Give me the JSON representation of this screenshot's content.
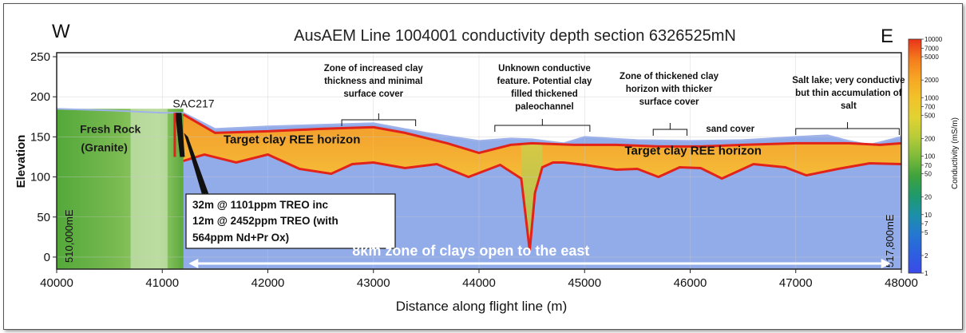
{
  "chart_data": {
    "type": "heatmap",
    "title": "AusAEM Line 1004001 conductivity depth section 6326525mN",
    "xlabel": "Distance along flight line (m)",
    "ylabel": "Elevation",
    "xlim": [
      40000,
      48000
    ],
    "ylim": [
      -15,
      255
    ],
    "x_ticks": [
      "40000",
      "41000",
      "42000",
      "43000",
      "44000",
      "45000",
      "46000",
      "47000",
      "48000"
    ],
    "x_tick_values": [
      40000,
      41000,
      42000,
      43000,
      44000,
      45000,
      46000,
      47000,
      48000
    ],
    "y_ticks": [
      "0",
      "50",
      "100",
      "150",
      "200",
      "250"
    ],
    "y_tick_values": [
      0,
      50,
      100,
      150,
      200,
      250
    ],
    "direction_left": "W",
    "direction_right": "E",
    "easting_left": "510,000mE",
    "easting_right": "517,800mE",
    "colorbar": {
      "label": "Conductivity (mS/m)",
      "scale": "log",
      "ticks": [
        "10000",
        "7000",
        "5000",
        "2000",
        "1000",
        "700",
        "500",
        "200",
        "100",
        "70",
        "50",
        "20",
        "10",
        "7",
        "5",
        "2",
        "1"
      ],
      "tick_values": [
        10000,
        7000,
        5000,
        2000,
        1000,
        700,
        500,
        200,
        100,
        70,
        50,
        20,
        10,
        7,
        5,
        2,
        1
      ],
      "colors": [
        "#e8331a",
        "#f57a1c",
        "#f6a524",
        "#f2c22a",
        "#e2d232",
        "#b8cc38",
        "#7fbb3a",
        "#3fa33c",
        "#1f9a6a",
        "#1c90a8",
        "#2478d0",
        "#2d5fe0",
        "#3a4ae8"
      ]
    },
    "drillhole": {
      "label": "SAC217",
      "x": 41160
    },
    "surface_profile": {
      "x": [
        40000,
        40500,
        41000,
        41200,
        41500,
        42000,
        42500,
        43000,
        43500,
        44000,
        44300,
        44500,
        44800,
        45000,
        45500,
        46000,
        46500,
        47000,
        47300,
        47500,
        47700,
        48000
      ],
      "y": [
        185,
        183,
        180,
        180,
        160,
        163,
        165,
        167,
        155,
        145,
        148,
        147,
        142,
        150,
        146,
        145,
        146,
        150,
        152,
        145,
        140,
        150
      ]
    },
    "clay_top": {
      "x": [
        41200,
        41500,
        42000,
        42500,
        43000,
        43300,
        43700,
        44000,
        44300,
        44500,
        44900,
        45300,
        45700,
        46100,
        46500,
        47000,
        47500,
        47800,
        48000
      ],
      "y": [
        178,
        155,
        157,
        160,
        162,
        155,
        142,
        130,
        140,
        142,
        140,
        140,
        138,
        138,
        140,
        142,
        142,
        140,
        142
      ]
    },
    "clay_base": {
      "x": [
        41200,
        41400,
        41700,
        42000,
        42300,
        42600,
        42800,
        43000,
        43300,
        43600,
        43900,
        44200,
        44400,
        44480,
        44530,
        44600,
        44700,
        44800,
        45000,
        45300,
        45500,
        45700,
        45900,
        46100,
        46300,
        46600,
        46900,
        47100,
        47400,
        47700,
        48000
      ],
      "y": [
        120,
        128,
        118,
        128,
        110,
        104,
        116,
        118,
        111,
        116,
        100,
        115,
        98,
        8,
        80,
        112,
        118,
        118,
        115,
        109,
        110,
        100,
        112,
        111,
        98,
        116,
        112,
        102,
        110,
        117,
        116
      ]
    },
    "annotations": [
      {
        "lines": [
          "Zone of increased clay",
          "thickness and minimal",
          "surface cover"
        ],
        "x": 43000
      },
      {
        "lines": [
          "Unknown conductive",
          "feature. Potential clay",
          "filled thickened",
          "paleochannel"
        ],
        "x": 44620
      },
      {
        "lines": [
          "Zone of thickened clay",
          "horizon with thicker",
          "surface cover"
        ],
        "x": 45800
      },
      {
        "lines": [
          "Salt lake; very conductive",
          "but thin accumulation of",
          "salt"
        ],
        "x": 47500
      },
      {
        "lines": [
          "sand cover"
        ],
        "x": 46380
      }
    ],
    "unit_labels": {
      "fresh_rock": [
        "Fresh Rock",
        "(Granite)"
      ],
      "target_left": "Target clay REE horizon",
      "target_right": "Target clay REE horizon"
    },
    "intercept_box": [
      "32m @ 1101ppm TREO inc",
      "12m @ 2452ppm TREO (with",
      "564ppm Nd+Pr Ox)"
    ],
    "zone_arrow": {
      "label": "8km zone of clays open to the east",
      "x_start": 41250,
      "x_end": 47900
    },
    "grid": true
  }
}
